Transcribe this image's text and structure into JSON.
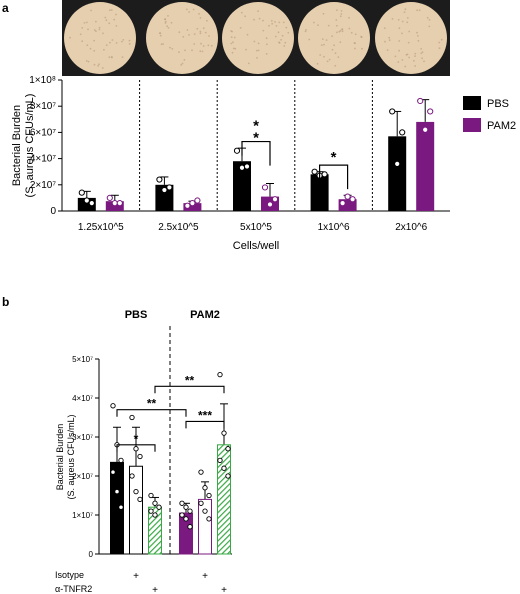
{
  "panels": {
    "a": "a",
    "b": "b"
  },
  "colors": {
    "pbs": "#000000",
    "pam2": "#7a1a80",
    "green": "#39a845",
    "open_bar": "#ffffff",
    "plate_bg": "#1c1c1c",
    "plate_fill": "#e6cfae",
    "plate_speck": "#b59a7a"
  },
  "chart_data": [
    {
      "panel": "a",
      "type": "bar",
      "xlabel": "Cells/well",
      "ylabel_line1": "Bacterial Burden",
      "ylabel_line2": "(S. aureus CFUs/mL)",
      "ylim": [
        0,
        100000000
      ],
      "yticks": [
        {
          "value": 0,
          "label": "0"
        },
        {
          "value": 20000000,
          "label": "2×10⁷"
        },
        {
          "value": 40000000,
          "label": "4×10⁷"
        },
        {
          "value": 60000000,
          "label": "6×10⁷"
        },
        {
          "value": 80000000,
          "label": "8×10⁷"
        },
        {
          "value": 100000000,
          "label": "1×10⁸"
        }
      ],
      "categories": [
        "1.25x10^5",
        "2.5x10^5",
        "5x10^5",
        "1x10^6",
        "2x10^6"
      ],
      "legend": {
        "placement": "right",
        "entries": [
          "PBS",
          "PAM2"
        ]
      },
      "series": [
        {
          "name": "PBS",
          "color": "#000000",
          "values": [
            10000000,
            20000000,
            38000000,
            28000000,
            57000000
          ],
          "errors": [
            5000000,
            6000000,
            10000000,
            2000000,
            19000000
          ],
          "points": [
            [
              14000000,
              8000000,
              6000000
            ],
            [
              24000000,
              16000000,
              18000000
            ],
            [
              46000000,
              33000000,
              34000000
            ],
            [
              30000000,
              27000000,
              28000000
            ],
            [
              76000000,
              36000000,
              60000000
            ]
          ]
        },
        {
          "name": "PAM2",
          "color": "#7a1a80",
          "values": [
            7500000,
            6000000,
            11000000,
            9000000,
            68000000
          ],
          "errors": [
            4500000,
            1500000,
            10000000,
            3000000,
            17000000
          ],
          "points": [
            [
              10000000,
              6000000,
              6000000
            ],
            [
              4000000,
              6000000,
              8000000
            ],
            [
              18000000,
              5000000,
              9000000
            ],
            [
              6000000,
              11000000,
              9000000
            ],
            [
              84000000,
              62000000,
              76000000
            ]
          ]
        }
      ],
      "significance": [
        {
          "category_index": 2,
          "label": "**",
          "y": 53000000
        },
        {
          "category_index": 3,
          "label": "*",
          "y": 35000000
        }
      ]
    },
    {
      "panel": "b",
      "type": "bar",
      "xlabel": "",
      "ylabel_line1": "Bacterial Burden",
      "ylabel_line2": "(S. aureus CFUs/mL)",
      "ylim": [
        0,
        50000000
      ],
      "yticks": [
        {
          "value": 0,
          "label": "0"
        },
        {
          "value": 10000000,
          "label": "1×10⁷"
        },
        {
          "value": 20000000,
          "label": "2×10⁷"
        },
        {
          "value": 30000000,
          "label": "3×10⁷"
        },
        {
          "value": 40000000,
          "label": "4×10⁷"
        },
        {
          "value": 50000000,
          "label": "5×10⁷"
        }
      ],
      "groups": [
        "PBS",
        "PAM2"
      ],
      "row_labels": [
        "Isotype",
        "α-TNFR2"
      ],
      "bars": [
        {
          "group": 0,
          "style": "solid",
          "color": "#000000",
          "value": 23500000,
          "error": 9000000,
          "isotype": "",
          "tnfr2": "",
          "points": [
            38000000,
            28000000,
            24000000,
            21000000,
            16000000,
            12000000
          ]
        },
        {
          "group": 0,
          "style": "open",
          "color": "#000000",
          "value": 22500000,
          "error": 10000000,
          "isotype": "+",
          "tnfr2": "",
          "points": [
            35000000,
            27000000,
            25000000,
            20000000,
            16000000,
            14000000
          ]
        },
        {
          "group": 0,
          "style": "hatch",
          "color": "#39a845",
          "value": 12000000,
          "error": 2500000,
          "isotype": "",
          "tnfr2": "+",
          "points": [
            15000000,
            13000000,
            12000000,
            11000000,
            10000000
          ]
        },
        {
          "group": 1,
          "style": "solid",
          "color": "#7a1a80",
          "value": 10500000,
          "error": 2500000,
          "isotype": "",
          "tnfr2": "",
          "points": [
            13000000,
            12000000,
            11000000,
            10000000,
            9000000,
            7000000
          ]
        },
        {
          "group": 1,
          "style": "open",
          "color": "#7a1a80",
          "value": 14000000,
          "error": 4500000,
          "isotype": "+",
          "tnfr2": "",
          "points": [
            21000000,
            17000000,
            15000000,
            13000000,
            11000000,
            9000000
          ]
        },
        {
          "group": 1,
          "style": "hatch",
          "color": "#39a845",
          "value": 28000000,
          "error": 10500000,
          "isotype": "",
          "tnfr2": "+",
          "points": [
            46000000,
            31000000,
            27000000,
            24000000,
            22000000,
            20000000
          ]
        }
      ],
      "significance": [
        {
          "from": 0,
          "to": 2,
          "label": "*",
          "y": 28000000
        },
        {
          "from": 0,
          "to": 3,
          "label": "**",
          "y": 37000000
        },
        {
          "from": 2,
          "to": 5,
          "label": "**",
          "y": 43000000
        },
        {
          "from": 3,
          "to": 5,
          "label": "***",
          "y": 34000000
        }
      ]
    }
  ]
}
